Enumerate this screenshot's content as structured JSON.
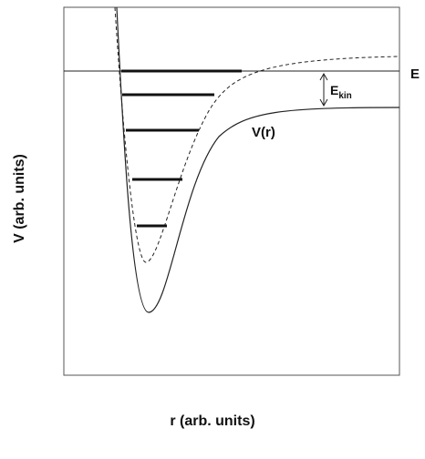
{
  "diagram": {
    "energy_label": "E",
    "kinetic_label": {
      "base": "E",
      "subscript": "kin"
    },
    "potential_label": "V(r)",
    "y_axis_label": "V (arb. units)",
    "x_axis_label": "r (arb. units)"
  }
}
